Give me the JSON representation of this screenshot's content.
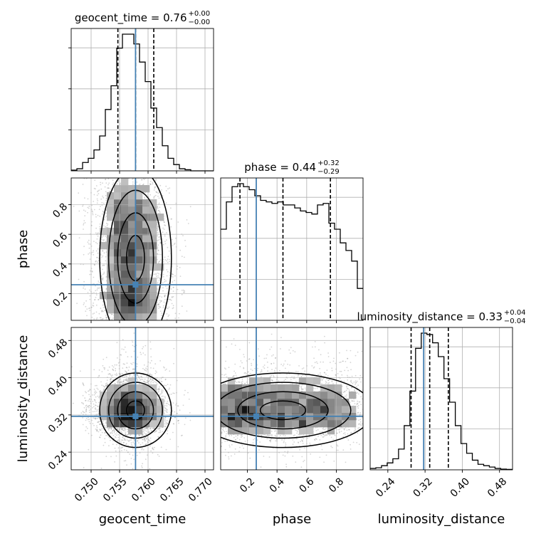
{
  "chart_data": {
    "type": "corner",
    "parameters": [
      "geocent_time",
      "phase",
      "luminosity_distance"
    ],
    "titles": [
      {
        "name": "geocent_time",
        "median": "0.76",
        "plus": "+0.00",
        "minus": "−0.00"
      },
      {
        "name": "phase",
        "median": "0.44",
        "plus": "+0.32",
        "minus": "−0.29"
      },
      {
        "name": "luminosity_distance",
        "median": "0.33",
        "plus": "+0.04",
        "minus": "−0.04"
      }
    ],
    "ranges": {
      "geocent_time": [
        0.7465,
        0.7715
      ],
      "phase": [
        0.02,
        0.98
      ],
      "luminosity_distance": [
        0.202,
        0.508
      ]
    },
    "ticks": {
      "geocent_time": [
        "0.750",
        "0.755",
        "0.760",
        "0.765",
        "0.770"
      ],
      "phase": [
        "0.2",
        "0.4",
        "0.6",
        "0.8"
      ],
      "luminosity_distance": [
        "0.24",
        "0.32",
        "0.40",
        "0.48"
      ]
    },
    "truths": {
      "geocent_time": 0.7578,
      "phase": 0.26,
      "luminosity_distance": 0.317
    },
    "quantiles": {
      "geocent_time": [
        0.7547,
        0.7578,
        0.761
      ],
      "phase": [
        0.15,
        0.44,
        0.76
      ],
      "luminosity_distance": [
        0.29,
        0.33,
        0.37
      ]
    },
    "histograms": {
      "geocent_time": {
        "edges": [
          0.7465,
          0.7475,
          0.7485,
          0.7495,
          0.7505,
          0.7515,
          0.7525,
          0.7535,
          0.7545,
          0.7555,
          0.7565,
          0.7575,
          0.7585,
          0.7595,
          0.7605,
          0.7615,
          0.7625,
          0.7635,
          0.7645,
          0.7655,
          0.7665,
          0.7675,
          0.7685,
          0.7695,
          0.7705,
          0.7715
        ],
        "counts": [
          0.005,
          0.015,
          0.06,
          0.09,
          0.15,
          0.25,
          0.44,
          0.61,
          0.88,
          0.98,
          0.98,
          0.91,
          0.78,
          0.64,
          0.45,
          0.31,
          0.18,
          0.09,
          0.045,
          0.015,
          0.008,
          0,
          0,
          0,
          0
        ]
      },
      "phase": {
        "edges": [
          0.02,
          0.0584,
          0.0968,
          0.1352,
          0.1736,
          0.212,
          0.2504,
          0.2888,
          0.3272,
          0.3656,
          0.404,
          0.4424,
          0.4808,
          0.5192,
          0.5576,
          0.596,
          0.6344,
          0.6728,
          0.7112,
          0.7496,
          0.788,
          0.8264,
          0.8648,
          0.9032,
          0.9416,
          0.98
        ],
        "counts": [
          0.6,
          0.78,
          0.88,
          0.9,
          0.88,
          0.86,
          0.82,
          0.79,
          0.78,
          0.77,
          0.78,
          0.76,
          0.76,
          0.74,
          0.72,
          0.71,
          0.7,
          0.76,
          0.77,
          0.64,
          0.6,
          0.51,
          0.46,
          0.39,
          0.21
        ]
      },
      "luminosity_distance": {
        "edges": [
          0.202,
          0.2142,
          0.2264,
          0.2386,
          0.2508,
          0.263,
          0.2752,
          0.2874,
          0.2996,
          0.3118,
          0.324,
          0.3362,
          0.3484,
          0.3606,
          0.3728,
          0.385,
          0.3972,
          0.4094,
          0.4216,
          0.4338,
          0.446,
          0.4582,
          0.4704,
          0.4826,
          0.4948,
          0.508
        ],
        "counts": [
          0.01,
          0.015,
          0.03,
          0.05,
          0.08,
          0.15,
          0.32,
          0.57,
          0.88,
          0.99,
          0.98,
          0.92,
          0.82,
          0.66,
          0.49,
          0.32,
          0.19,
          0.12,
          0.07,
          0.04,
          0.03,
          0.02,
          0.01,
          0.005,
          0.003
        ]
      }
    },
    "colors": {
      "truth": "#4682b4",
      "line": "#000000",
      "grid": "#b0b0b0"
    },
    "grid": true,
    "contour_levels": 4
  }
}
